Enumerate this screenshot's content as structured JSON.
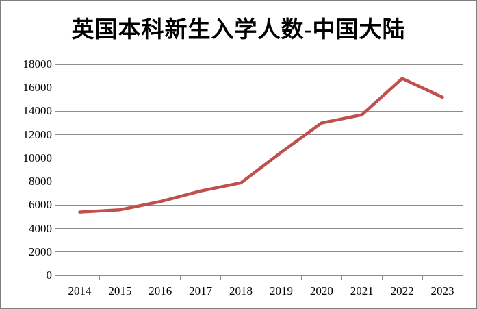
{
  "title": "英国本科新生入学人数-中国大陆",
  "chart_data": {
    "type": "line",
    "title": "英国本科新生入学人数-中国大陆",
    "categories": [
      "2014",
      "2015",
      "2016",
      "2017",
      "2018",
      "2019",
      "2020",
      "2021",
      "2022",
      "2023"
    ],
    "values": [
      5400,
      5600,
      6300,
      7200,
      7900,
      10500,
      13000,
      13700,
      16800,
      15200
    ],
    "xlabel": "",
    "ylabel": "",
    "ylim": [
      0,
      18000
    ],
    "y_ticks": [
      0,
      2000,
      4000,
      6000,
      8000,
      10000,
      12000,
      14000,
      16000,
      18000
    ],
    "grid": true,
    "legend": false,
    "line_color": "#C0504D",
    "gridline_color": "#8E8E8E",
    "axis_color": "#8E8E8E",
    "text_color": "#000000",
    "background_color": "#FFFFFF",
    "border_color": "#7F7F7F"
  }
}
